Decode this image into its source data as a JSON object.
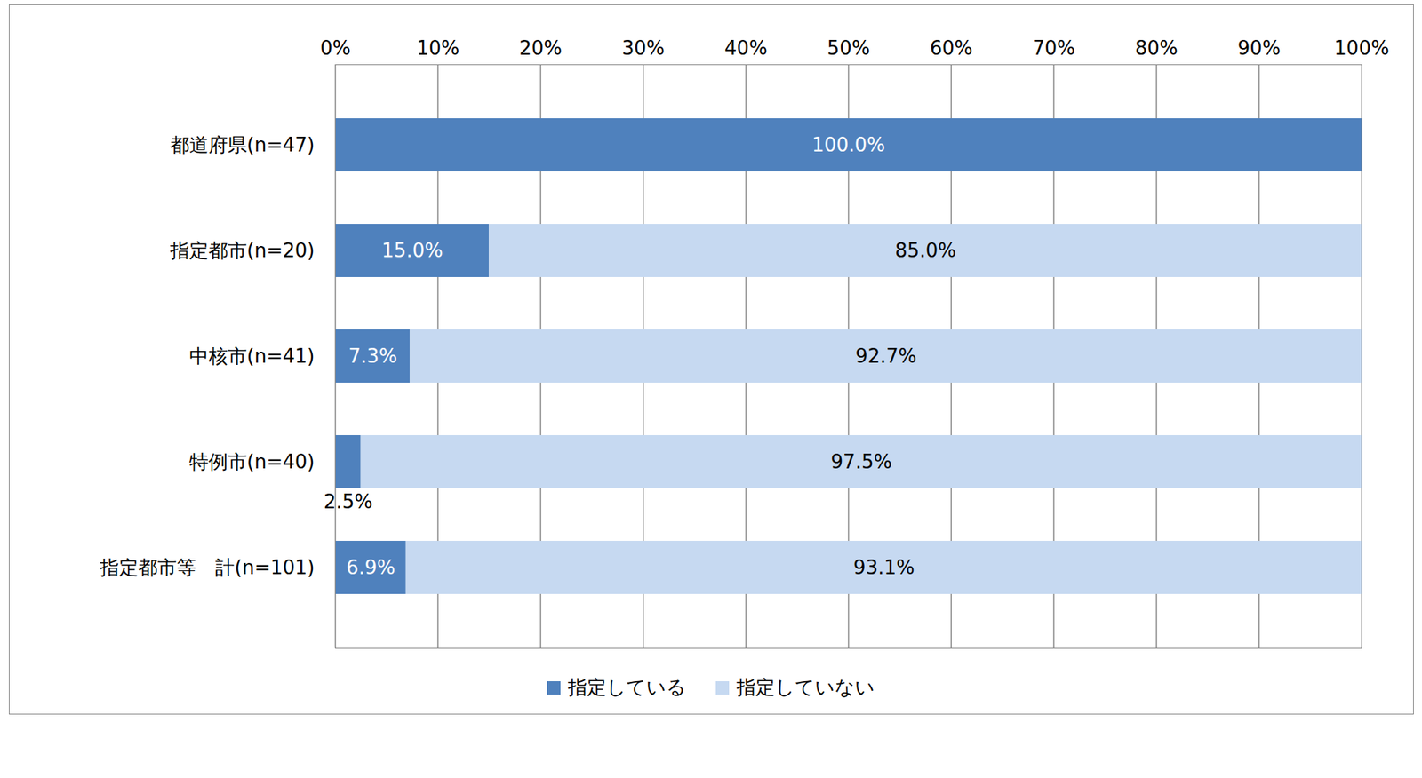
{
  "chart_data": {
    "type": "bar",
    "orientation": "horizontal",
    "stacked": true,
    "data_labels": true,
    "grid": true,
    "legend": "bottom",
    "categories": [
      "都道府県(n=47)",
      "指定都市(n=20)",
      "中核市(n=41)",
      "特例市(n=40)",
      "指定都市等　計(n=101)"
    ],
    "series": [
      {
        "name": "指定している",
        "color": "#4f81bd",
        "values": [
          100.0,
          15.0,
          7.3,
          2.5,
          6.9
        ],
        "value_labels": [
          "100.0%",
          "15.0%",
          "7.3%",
          "2.5%",
          "6.9%"
        ]
      },
      {
        "name": "指定していない",
        "color": "#c6d9f1",
        "values": [
          0,
          85.0,
          92.7,
          97.5,
          93.1
        ],
        "value_labels": [
          null,
          "85.0%",
          "92.7%",
          "97.5%",
          "93.1%"
        ]
      }
    ],
    "xlim": [
      0,
      100
    ],
    "xticks": [
      {
        "value": 0,
        "label": "0%"
      },
      {
        "value": 10,
        "label": "10%"
      },
      {
        "value": 20,
        "label": "20%"
      },
      {
        "value": 30,
        "label": "30%"
      },
      {
        "value": 40,
        "label": "40%"
      },
      {
        "value": 50,
        "label": "50%"
      },
      {
        "value": 60,
        "label": "60%"
      },
      {
        "value": 70,
        "label": "70%"
      },
      {
        "value": 80,
        "label": "80%"
      },
      {
        "value": 90,
        "label": "90%"
      },
      {
        "value": 100,
        "label": "100%"
      }
    ]
  }
}
